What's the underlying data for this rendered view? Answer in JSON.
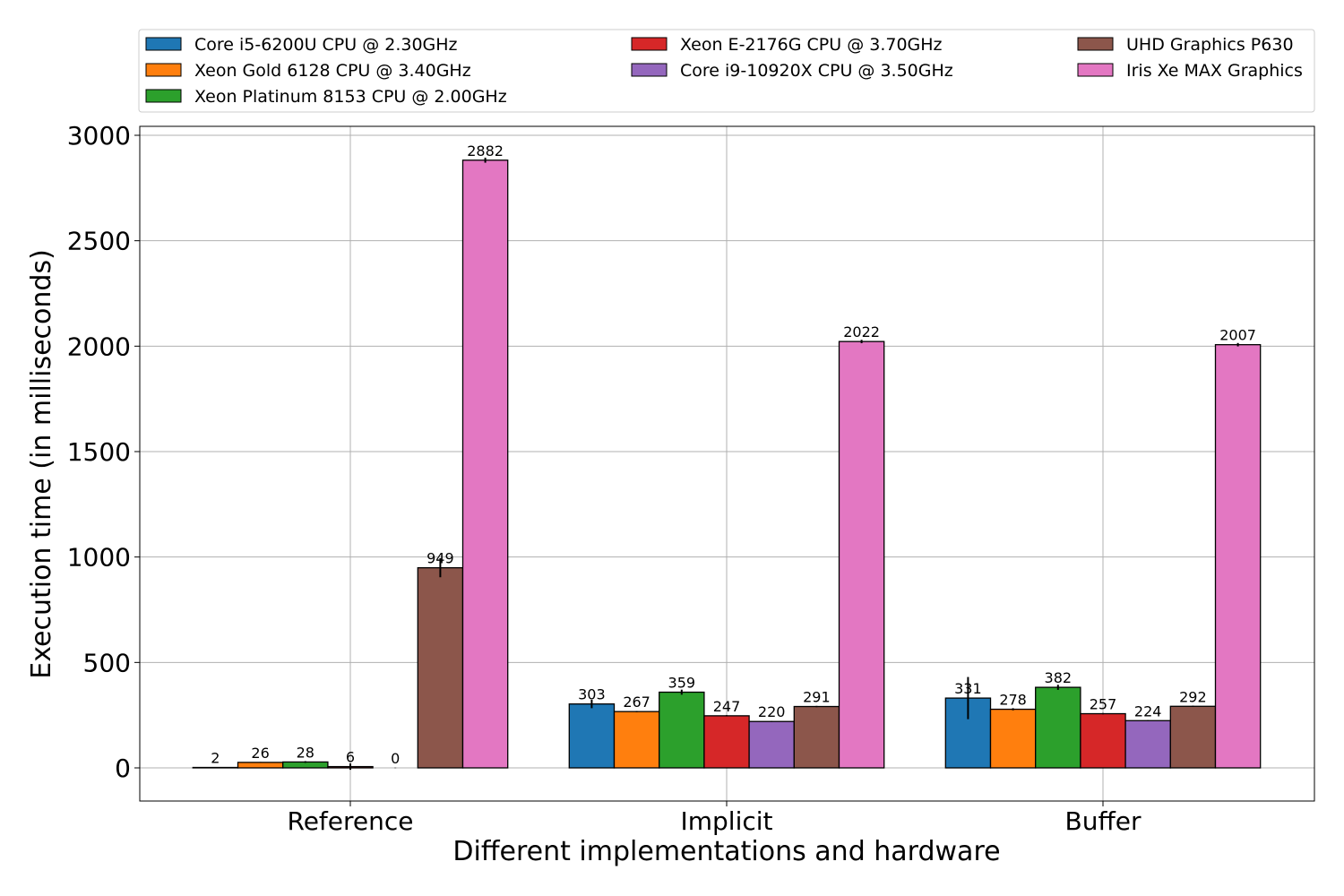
{
  "chart_data": {
    "type": "bar",
    "title": "",
    "xlabel": "Different implementations and hardware",
    "ylabel": "Execution time (in milliseconds)",
    "categories": [
      "Reference",
      "Implicit",
      "Buffer"
    ],
    "ylim": [
      -155,
      3050
    ],
    "yticks": [
      0,
      500,
      1000,
      1500,
      2000,
      2500,
      3000
    ],
    "grid": true,
    "legend_position": "top",
    "legend_columns": 3,
    "error_bars": true,
    "series": [
      {
        "name": "Core i5-6200U CPU @ 2.30GHz",
        "color": "#1f77b4",
        "values": [
          2,
          303,
          331
        ],
        "errors": [
          2,
          20,
          100
        ]
      },
      {
        "name": "Xeon Gold 6128 CPU @ 3.40GHz",
        "color": "#ff7f0e",
        "values": [
          26,
          267,
          278
        ],
        "errors": [
          2,
          3,
          5
        ]
      },
      {
        "name": "Xeon Platinum 8153 CPU @ 2.00GHz",
        "color": "#2ca02c",
        "values": [
          28,
          359,
          382
        ],
        "errors": [
          4,
          12,
          12
        ]
      },
      {
        "name": "Xeon E-2176G CPU @ 3.70GHz",
        "color": "#d62728",
        "values": [
          6,
          247,
          257
        ],
        "errors": [
          15,
          3,
          3
        ]
      },
      {
        "name": "Core i9-10920X CPU @ 3.50GHz",
        "color": "#9467bd",
        "values": [
          0,
          220,
          224
        ],
        "errors": [
          1,
          2,
          2
        ]
      },
      {
        "name": "UHD Graphics P630",
        "color": "#8c564b",
        "values": [
          949,
          291,
          292
        ],
        "errors": [
          45,
          3,
          3
        ]
      },
      {
        "name": "Iris Xe MAX Graphics",
        "color": "#e377c2",
        "values": [
          2882,
          2022,
          2007
        ],
        "errors": [
          12,
          8,
          8
        ]
      }
    ]
  }
}
